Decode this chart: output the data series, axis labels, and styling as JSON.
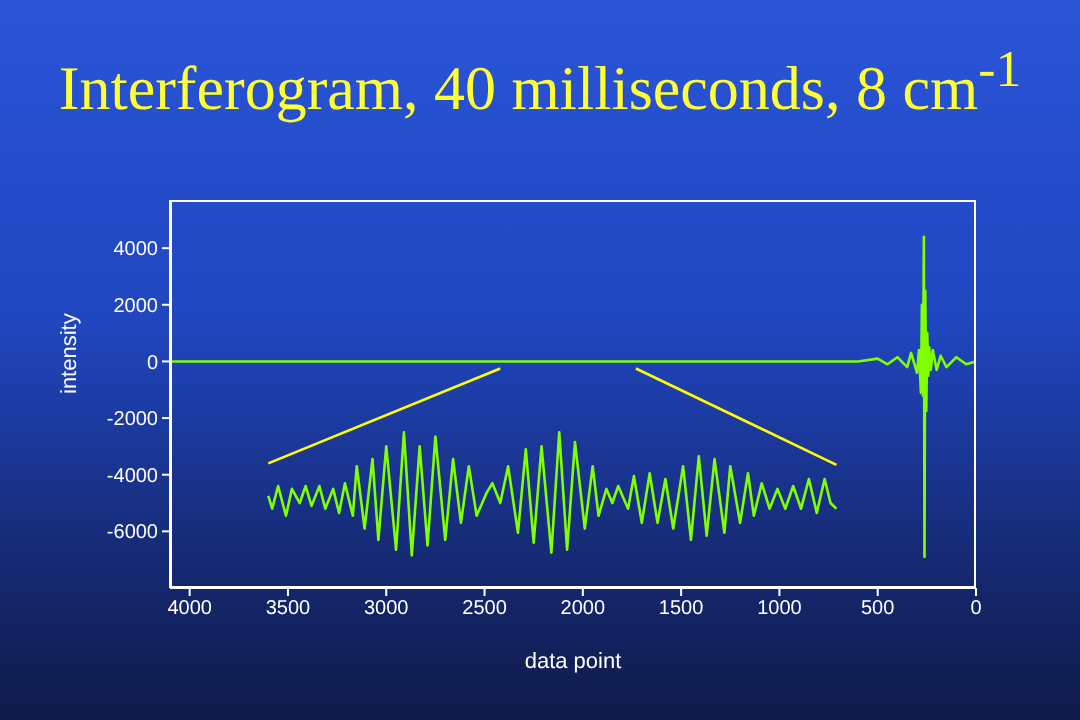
{
  "chart_data": {
    "type": "line",
    "title": "Interferogram, 40 milliseconds, 8 cm$^{-1}$",
    "xlabel": "data point",
    "ylabel": "intensity",
    "xlim": [
      4100,
      0
    ],
    "xticks": [
      4000,
      3500,
      3000,
      2500,
      2000,
      1500,
      1000,
      500,
      0
    ],
    "ylim": [
      -8000,
      5700
    ],
    "yticks": [
      4000,
      2000,
      0,
      -2000,
      -4000,
      -6000
    ],
    "marker": "none",
    "series": [
      {
        "color": "#80ff00",
        "x": [
          4100,
          3000,
          2000,
          1000,
          600,
          500,
          450,
          400,
          350,
          330,
          300,
          290,
          280,
          275,
          270,
          265,
          262,
          258,
          253,
          248,
          243,
          238,
          230,
          220,
          200,
          180,
          150,
          100,
          50,
          0
        ],
        "values": [
          0,
          0,
          0,
          0,
          0,
          100,
          -100,
          150,
          -200,
          300,
          -400,
          400,
          -1100,
          2000,
          -1200,
          4400,
          -6900,
          2500,
          -1750,
          1000,
          -500,
          500,
          -300,
          400,
          -300,
          200,
          -200,
          150,
          -100,
          0
        ]
      },
      {
        "color": "#80ff00",
        "x": [
          3600,
          3580,
          3550,
          3510,
          3480,
          3440,
          3410,
          3380,
          3340,
          3310,
          3270,
          3240,
          3210,
          3170,
          3150,
          3110,
          3070,
          3040,
          3000,
          2950,
          2910,
          2870,
          2830,
          2790,
          2750,
          2700,
          2660,
          2620,
          2580,
          2540,
          2490,
          2460,
          2420,
          2380,
          2330,
          2290,
          2250,
          2210,
          2160,
          2120,
          2080,
          2040,
          1990,
          1950,
          1920,
          1880,
          1850,
          1820,
          1770,
          1740,
          1700,
          1660,
          1620,
          1580,
          1540,
          1490,
          1450,
          1410,
          1370,
          1330,
          1280,
          1250,
          1200,
          1160,
          1130,
          1090,
          1050,
          1010,
          970,
          930,
          890,
          850,
          810,
          770,
          740,
          710
        ],
        "values": [
          -4750,
          -5200,
          -4400,
          -5450,
          -4500,
          -5000,
          -4400,
          -5100,
          -4400,
          -5200,
          -4500,
          -5350,
          -4300,
          -5450,
          -3700,
          -5900,
          -3450,
          -6300,
          -3000,
          -6650,
          -2500,
          -6850,
          -3000,
          -6500,
          -2650,
          -6300,
          -3450,
          -5700,
          -3700,
          -5450,
          -4650,
          -4300,
          -5000,
          -3700,
          -6050,
          -3100,
          -6400,
          -3000,
          -6750,
          -2500,
          -6650,
          -2850,
          -5900,
          -3700,
          -5450,
          -4500,
          -5000,
          -4400,
          -5200,
          -4050,
          -5700,
          -3950,
          -5700,
          -4150,
          -5900,
          -3700,
          -6300,
          -3350,
          -6150,
          -3450,
          -6050,
          -3700,
          -5700,
          -3950,
          -5450,
          -4300,
          -5200,
          -4500,
          -5200,
          -4400,
          -5200,
          -4150,
          -5350,
          -4150,
          -5000,
          -5200
        ]
      },
      {
        "color": "#ffff00",
        "x": [
          3600,
          2420
        ],
        "values": [
          -3600,
          -250
        ]
      },
      {
        "color": "#ffff00",
        "x": [
          1730,
          710
        ],
        "values": [
          -250,
          -3650
        ]
      }
    ]
  }
}
